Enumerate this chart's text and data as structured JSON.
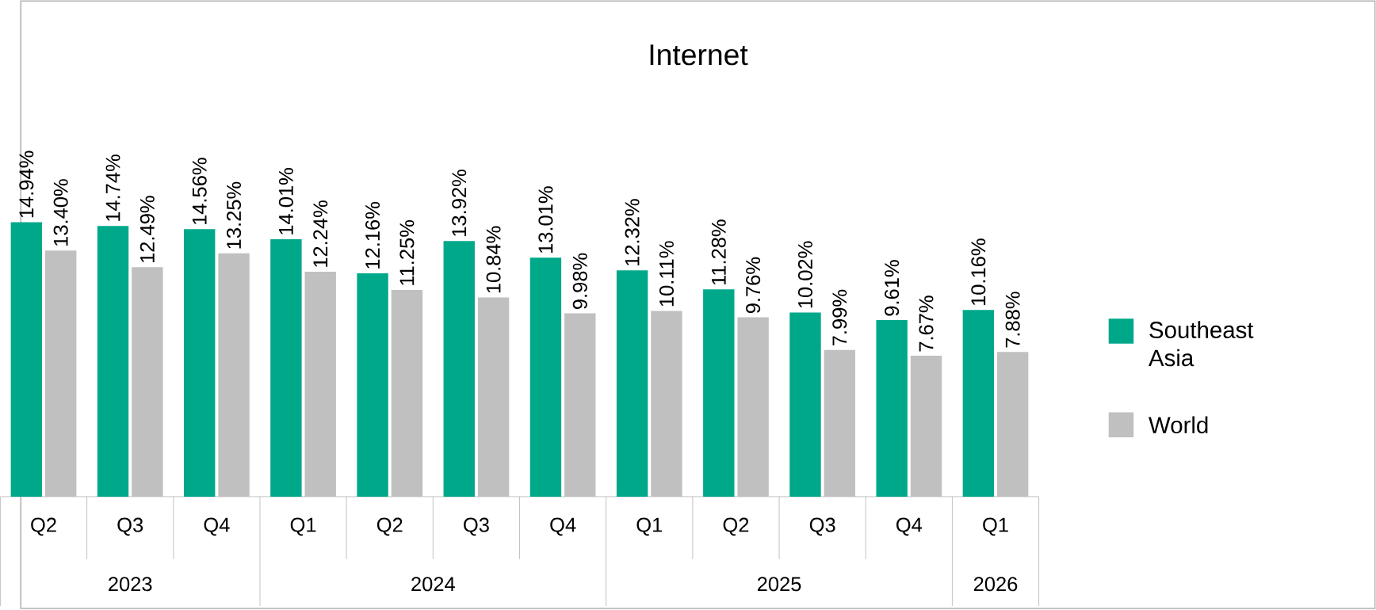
{
  "chart_data": {
    "type": "bar",
    "title": "Internet",
    "categories": [
      "Q2",
      "Q3",
      "Q4",
      "Q1",
      "Q2",
      "Q3",
      "Q4",
      "Q1",
      "Q2",
      "Q3",
      "Q4",
      "Q1"
    ],
    "series": [
      {
        "name": "Southeast Asia",
        "color": "#00a88a",
        "values": [
          14.94,
          14.74,
          14.56,
          14.01,
          12.16,
          13.92,
          13.01,
          12.32,
          11.28,
          10.02,
          9.61,
          10.16
        ],
        "value_labels": [
          "14.94%",
          "14.74%",
          "14.56%",
          "14.01%",
          "12.16%",
          "13.92%",
          "13.01%",
          "12.32%",
          "11.28%",
          "10.02%",
          "9.61%",
          "10.16%"
        ]
      },
      {
        "name": "World",
        "color": "#c0c0c0",
        "values": [
          13.4,
          12.49,
          13.25,
          12.24,
          11.25,
          10.84,
          9.98,
          10.11,
          9.76,
          7.99,
          7.67,
          7.88
        ],
        "value_labels": [
          "13.40%",
          "12.49%",
          "13.25%",
          "12.24%",
          "11.25%",
          "10.84%",
          "9.98%",
          "10.11%",
          "9.76%",
          "7.99%",
          "7.67%",
          "7.88%"
        ]
      }
    ],
    "annotations": [
      "2023",
      "2024",
      "2025",
      "2026"
    ],
    "tick_labels": "x",
    "legend": "right",
    "grid": false
  }
}
